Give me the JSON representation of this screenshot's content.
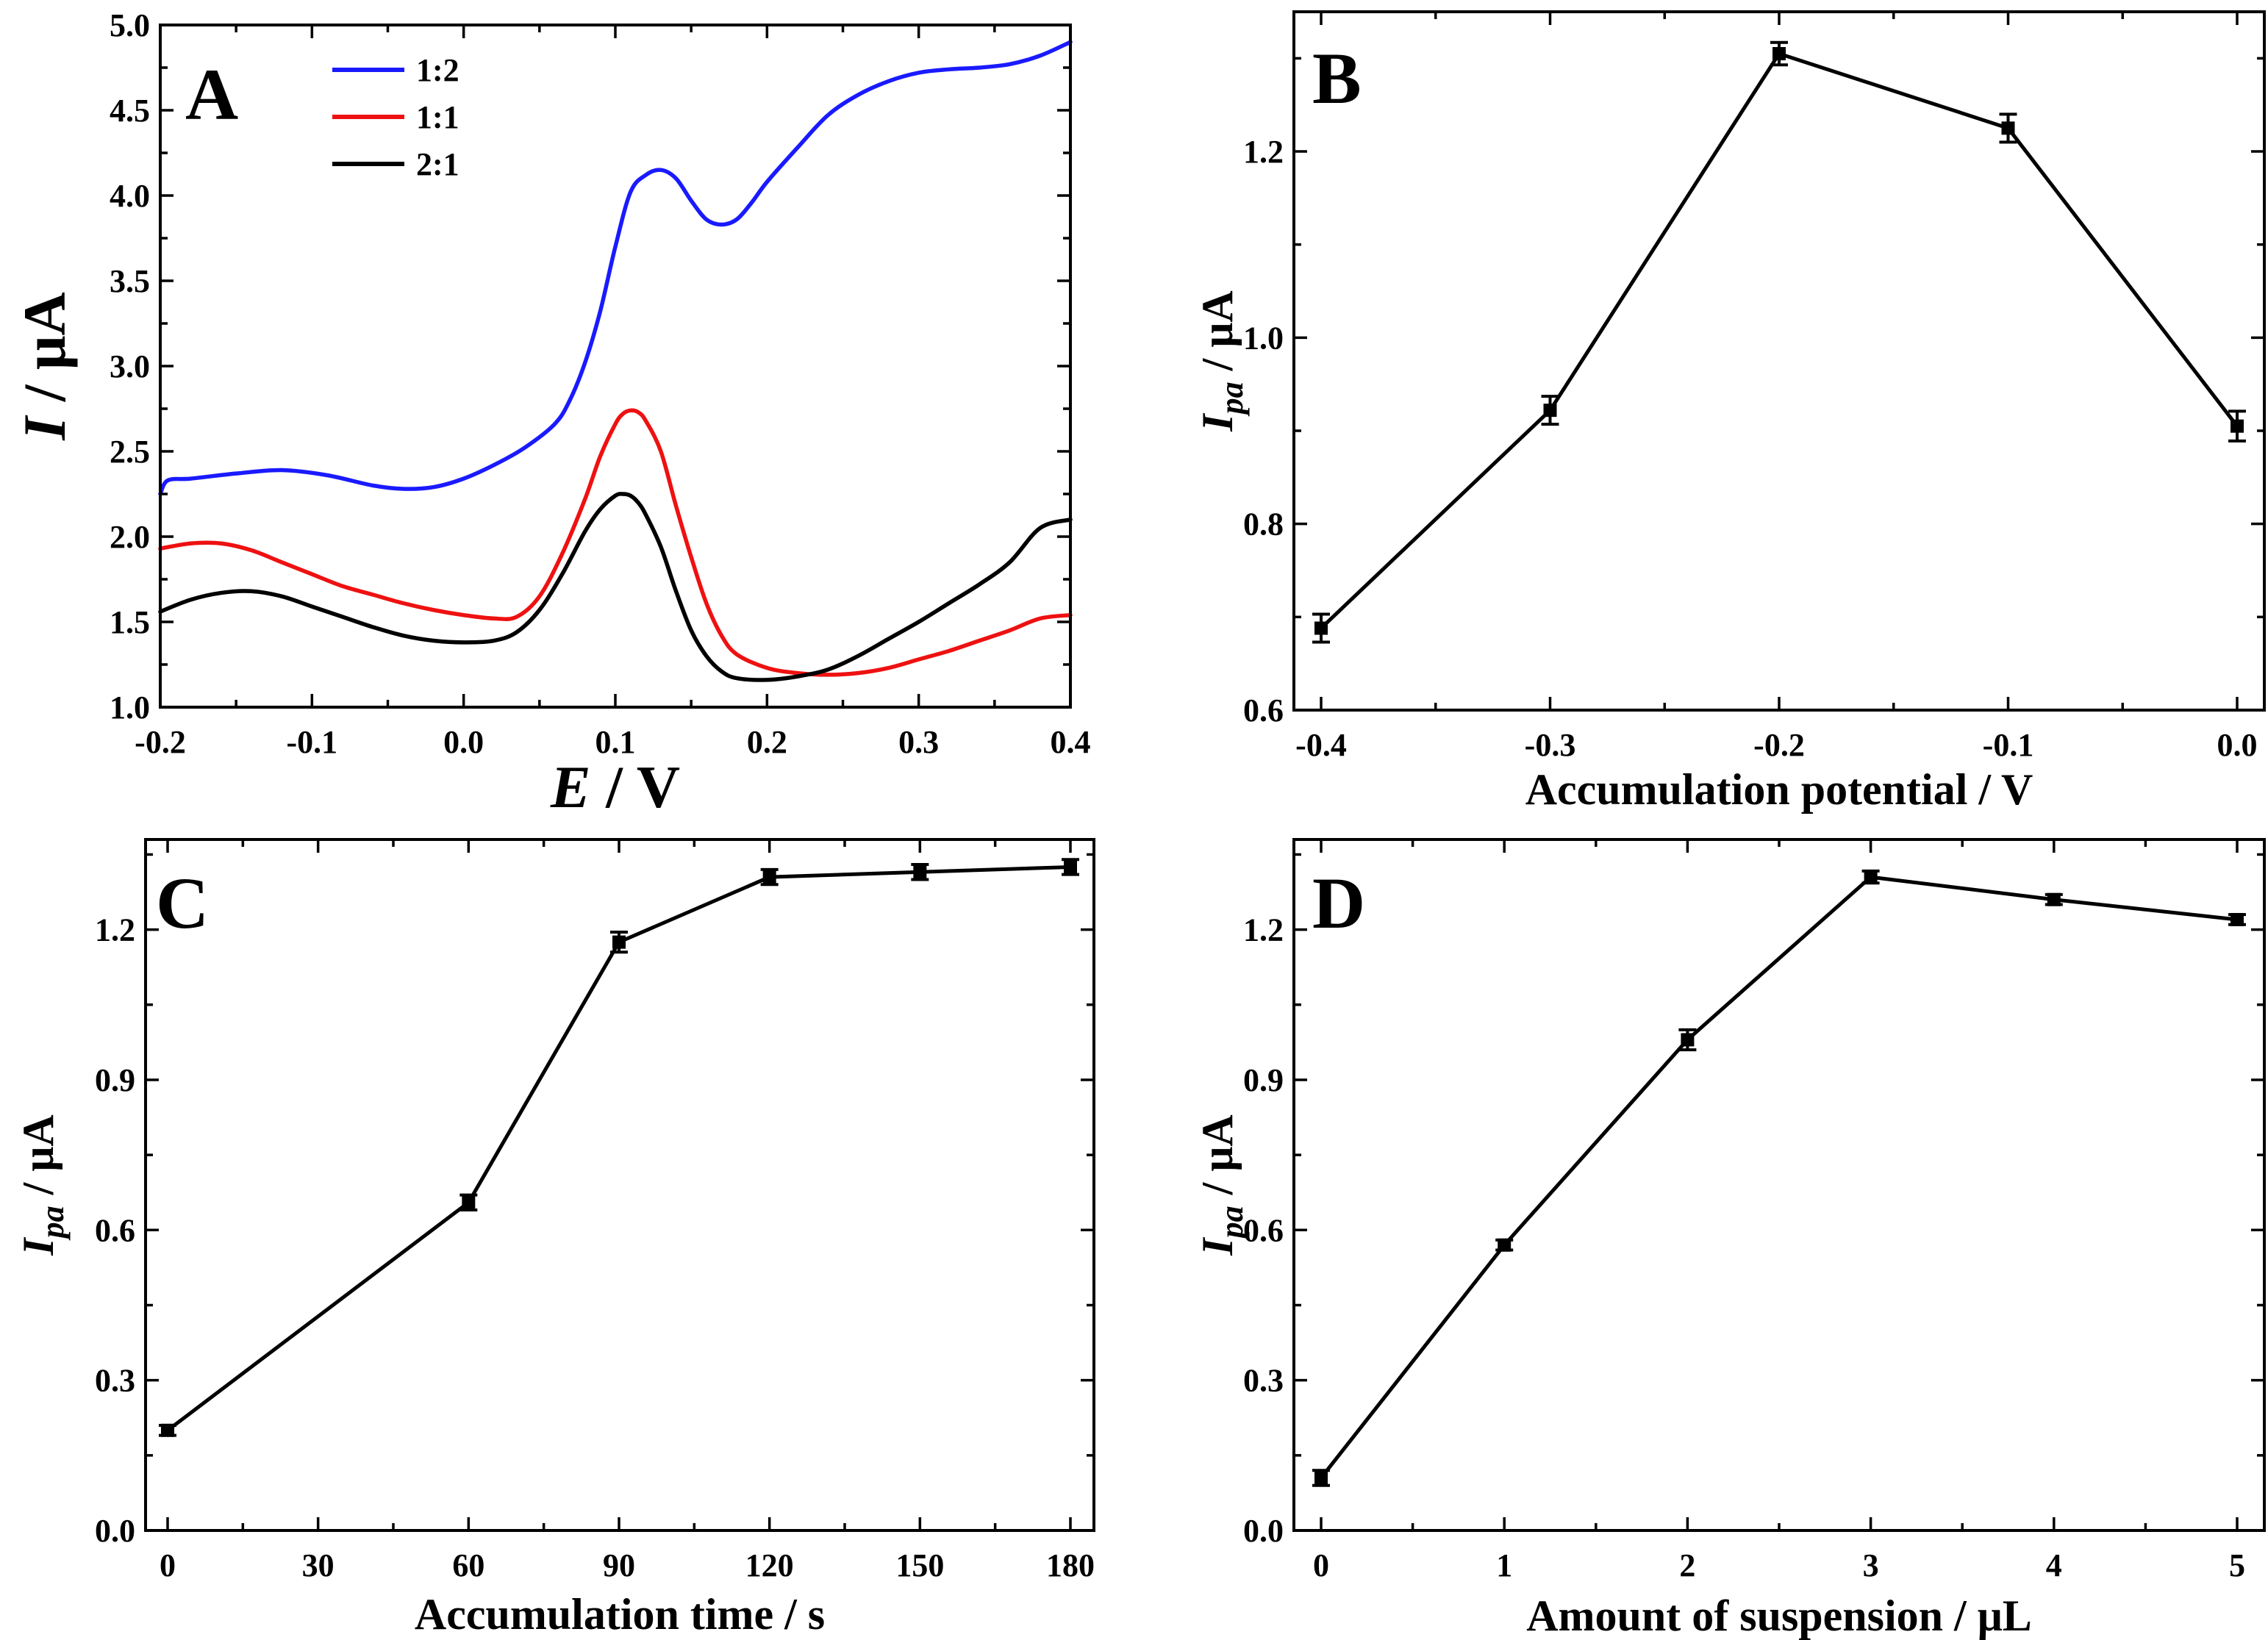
{
  "chart_data": [
    {
      "panel": "A",
      "type": "line",
      "xlabel": "E / V",
      "ylabel": "I / μA",
      "xlim": [
        -0.2,
        0.4
      ],
      "ylim": [
        1.0,
        5.0
      ],
      "xticks": [
        -0.2,
        -0.1,
        0.0,
        0.1,
        0.2,
        0.3,
        0.4
      ],
      "xtick_labels": [
        "-0.2",
        "-0.1",
        "0.0",
        "0.1",
        "0.2",
        "0.3",
        "0.4"
      ],
      "yticks": [
        1.0,
        1.5,
        2.0,
        2.5,
        3.0,
        3.5,
        4.0,
        4.5,
        5.0
      ],
      "ytick_labels": [
        "1.0",
        "1.5",
        "2.0",
        "2.5",
        "3.0",
        "3.5",
        "4.0",
        "4.5",
        "5.0"
      ],
      "legend_position": "top-left",
      "series": [
        {
          "name": "1:2",
          "color": "#1a1aff",
          "x": [
            -0.2,
            -0.195,
            -0.18,
            -0.15,
            -0.12,
            -0.09,
            -0.06,
            -0.04,
            -0.02,
            0.0,
            0.02,
            0.04,
            0.06,
            0.07,
            0.08,
            0.09,
            0.1,
            0.11,
            0.12,
            0.13,
            0.14,
            0.15,
            0.16,
            0.17,
            0.18,
            0.19,
            0.2,
            0.22,
            0.24,
            0.26,
            0.28,
            0.3,
            0.32,
            0.34,
            0.36,
            0.38,
            0.4
          ],
          "y": [
            2.25,
            2.33,
            2.34,
            2.37,
            2.39,
            2.36,
            2.3,
            2.28,
            2.29,
            2.34,
            2.42,
            2.52,
            2.66,
            2.8,
            3.02,
            3.32,
            3.7,
            4.02,
            4.12,
            4.15,
            4.1,
            3.97,
            3.86,
            3.83,
            3.86,
            3.96,
            4.08,
            4.28,
            4.47,
            4.59,
            4.67,
            4.72,
            4.74,
            4.75,
            4.77,
            4.82,
            4.9
          ]
        },
        {
          "name": "1:1",
          "color": "#ee1111",
          "x": [
            -0.2,
            -0.18,
            -0.16,
            -0.14,
            -0.12,
            -0.1,
            -0.08,
            -0.06,
            -0.04,
            -0.02,
            0.0,
            0.02,
            0.035,
            0.05,
            0.065,
            0.08,
            0.09,
            0.1,
            0.105,
            0.11,
            0.115,
            0.12,
            0.13,
            0.14,
            0.15,
            0.16,
            0.17,
            0.18,
            0.2,
            0.22,
            0.24,
            0.26,
            0.28,
            0.3,
            0.32,
            0.34,
            0.36,
            0.38,
            0.4
          ],
          "y": [
            1.93,
            1.96,
            1.96,
            1.92,
            1.85,
            1.78,
            1.71,
            1.66,
            1.61,
            1.57,
            1.54,
            1.52,
            1.53,
            1.65,
            1.9,
            2.22,
            2.47,
            2.66,
            2.72,
            2.74,
            2.73,
            2.68,
            2.5,
            2.18,
            1.88,
            1.61,
            1.42,
            1.31,
            1.23,
            1.2,
            1.19,
            1.2,
            1.23,
            1.28,
            1.33,
            1.39,
            1.45,
            1.52,
            1.54
          ]
        },
        {
          "name": "2:1",
          "color": "#000000",
          "x": [
            -0.2,
            -0.18,
            -0.16,
            -0.14,
            -0.12,
            -0.1,
            -0.08,
            -0.06,
            -0.04,
            -0.02,
            0.0,
            0.02,
            0.035,
            0.05,
            0.065,
            0.08,
            0.09,
            0.1,
            0.105,
            0.11,
            0.115,
            0.12,
            0.13,
            0.14,
            0.15,
            0.16,
            0.17,
            0.18,
            0.2,
            0.22,
            0.24,
            0.26,
            0.28,
            0.3,
            0.32,
            0.34,
            0.36,
            0.38,
            0.4
          ],
          "y": [
            1.56,
            1.63,
            1.67,
            1.68,
            1.65,
            1.59,
            1.53,
            1.47,
            1.42,
            1.39,
            1.38,
            1.39,
            1.44,
            1.57,
            1.78,
            2.03,
            2.16,
            2.24,
            2.25,
            2.24,
            2.2,
            2.13,
            1.94,
            1.68,
            1.45,
            1.3,
            1.21,
            1.17,
            1.16,
            1.18,
            1.22,
            1.3,
            1.4,
            1.5,
            1.61,
            1.72,
            1.85,
            2.05,
            2.1
          ]
        }
      ]
    },
    {
      "panel": "B",
      "type": "line",
      "markers": "square",
      "xlabel": "Accumulation potential / V",
      "ylabel": "I_pa / μA",
      "xlim": [
        -0.4,
        0.0
      ],
      "ylim": [
        0.6,
        1.35
      ],
      "xticks": [
        -0.4,
        -0.3,
        -0.2,
        -0.1,
        0.0
      ],
      "xtick_labels": [
        "-0.4",
        "-0.3",
        "-0.2",
        "-0.1",
        "0.0"
      ],
      "yticks": [
        0.6,
        0.8,
        1.0,
        1.2
      ],
      "ytick_labels": [
        "0.6",
        "0.8",
        "1.0",
        "1.2"
      ],
      "x": [
        -0.4,
        -0.3,
        -0.2,
        -0.1,
        0.0
      ],
      "y": [
        0.688,
        0.922,
        1.305,
        1.225,
        0.905
      ],
      "err": [
        0.015,
        0.015,
        0.012,
        0.015,
        0.016
      ]
    },
    {
      "panel": "C",
      "type": "line",
      "markers": "square",
      "xlabel": "Accumulation time / s",
      "ylabel": "I_pa / μA",
      "xlim": [
        0,
        180
      ],
      "ylim": [
        0.0,
        1.38
      ],
      "xticks": [
        0,
        30,
        60,
        90,
        120,
        150,
        180
      ],
      "xtick_labels": [
        "0",
        "30",
        "60",
        "90",
        "120",
        "150",
        "180"
      ],
      "yticks": [
        0.0,
        0.3,
        0.6,
        0.9,
        1.2
      ],
      "ytick_labels": [
        "0.0",
        "0.3",
        "0.6",
        "0.9",
        "1.2"
      ],
      "x": [
        0,
        60,
        90,
        120,
        150,
        180
      ],
      "y": [
        0.2,
        0.655,
        1.175,
        1.305,
        1.315,
        1.325
      ],
      "err": [
        0.01,
        0.015,
        0.02,
        0.015,
        0.015,
        0.015
      ]
    },
    {
      "panel": "D",
      "type": "line",
      "markers": "square",
      "xlabel": "Amount of suspension / μL",
      "ylabel": "I_pa / μA",
      "xlim": [
        0,
        5
      ],
      "ylim": [
        0.0,
        1.38
      ],
      "xticks": [
        0,
        1,
        2,
        3,
        4,
        5
      ],
      "xtick_labels": [
        "0",
        "1",
        "2",
        "3",
        "4",
        "5"
      ],
      "yticks": [
        0.0,
        0.3,
        0.6,
        0.9,
        1.2
      ],
      "ytick_labels": [
        "0.0",
        "0.3",
        "0.6",
        "0.9",
        "1.2"
      ],
      "x": [
        0,
        1,
        2,
        3,
        4,
        5
      ],
      "y": [
        0.105,
        0.57,
        0.98,
        1.305,
        1.26,
        1.22
      ],
      "err": [
        0.015,
        0.01,
        0.02,
        0.012,
        0.01,
        0.01
      ]
    }
  ]
}
